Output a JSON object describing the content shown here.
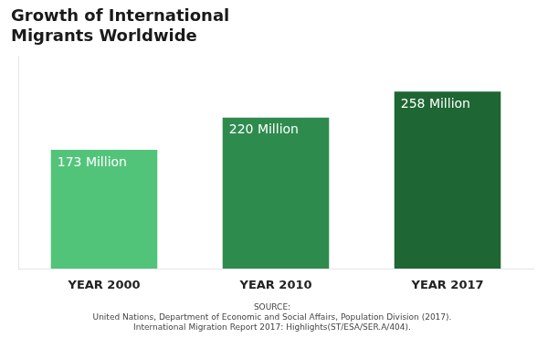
{
  "chart_data": {
    "type": "bar",
    "title": "Growth of International\nMigrants Worldwide",
    "categories": [
      "YEAR 2000",
      "YEAR 2010",
      "YEAR 2017"
    ],
    "values": [
      173,
      220,
      258
    ],
    "value_labels": [
      "173 Million",
      "220 Million",
      "258 Million"
    ],
    "colors": [
      "#52c47a",
      "#2e8b4e",
      "#1e6633"
    ],
    "ylim": [
      0,
      310
    ],
    "grid": false,
    "data_labels": true,
    "tick_labels": "x",
    "annotation": "SOURCE:\nUnited Nations, Department of Economic and Social Affairs, Population Division (2017).\nInternational Migration Report 2017: Highlights(ST/ESA/SER.A/404)."
  }
}
